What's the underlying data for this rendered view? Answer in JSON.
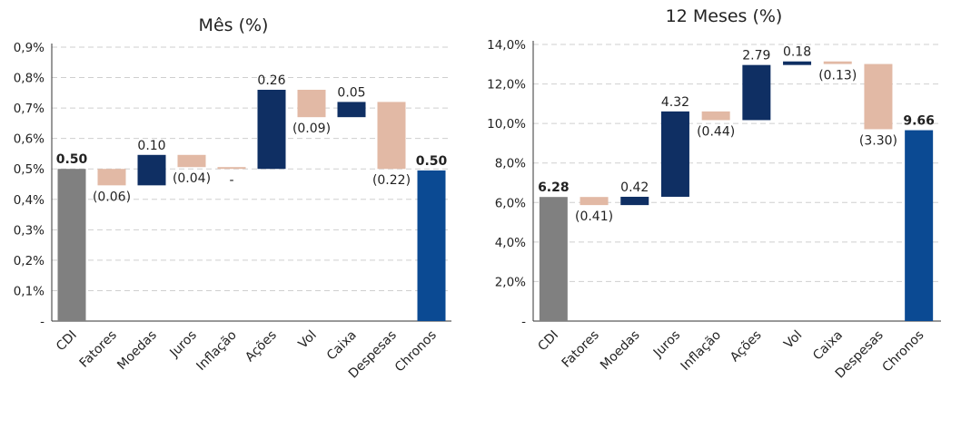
{
  "colors": {
    "cdi": "#808080",
    "positive": "#0f2f63",
    "negative": "#e2b9a5",
    "total": "#0b4a93"
  },
  "chart_data": [
    {
      "type": "bar",
      "variant": "waterfall",
      "title": "Mês (%)",
      "ylim": [
        0,
        0.9
      ],
      "yticks": [
        {
          "v": 0,
          "label": "-"
        },
        {
          "v": 0.1,
          "label": "0,1%"
        },
        {
          "v": 0.2,
          "label": "0,2%"
        },
        {
          "v": 0.3,
          "label": "0,3%"
        },
        {
          "v": 0.4,
          "label": "0,4%"
        },
        {
          "v": 0.5,
          "label": "0,5%"
        },
        {
          "v": 0.6,
          "label": "0,6%"
        },
        {
          "v": 0.7,
          "label": "0,7%"
        },
        {
          "v": 0.8,
          "label": "0,8%"
        },
        {
          "v": 0.9,
          "label": "0,9%"
        }
      ],
      "grid": true,
      "categories": [
        "CDI",
        "Fatores",
        "Moedas",
        "Juros",
        "Inflação",
        "Ações",
        "Vol",
        "Caixa",
        "Despesas",
        "Chronos"
      ],
      "bars": [
        {
          "kind": "total-cdi",
          "base": 0,
          "top": 0.5,
          "label": "0.50",
          "bold": true
        },
        {
          "kind": "negative",
          "base": 0.5,
          "top": 0.446,
          "label": "(0.06)",
          "bold": false
        },
        {
          "kind": "positive",
          "base": 0.446,
          "top": 0.546,
          "label": "0.10",
          "bold": false
        },
        {
          "kind": "negative",
          "base": 0.546,
          "top": 0.506,
          "label": "(0.04)",
          "bold": false
        },
        {
          "kind": "negative",
          "base": 0.506,
          "top": 0.5,
          "label": "-",
          "bold": false
        },
        {
          "kind": "positive",
          "base": 0.5,
          "top": 0.76,
          "label": "0.26",
          "bold": false
        },
        {
          "kind": "negative",
          "base": 0.76,
          "top": 0.67,
          "label": "(0.09)",
          "bold": false
        },
        {
          "kind": "positive",
          "base": 0.67,
          "top": 0.72,
          "label": "0.05",
          "bold": false
        },
        {
          "kind": "negative",
          "base": 0.72,
          "top": 0.5,
          "label": "(0.22)",
          "bold": false
        },
        {
          "kind": "total",
          "base": 0,
          "top": 0.495,
          "label": "0.50",
          "bold": true
        }
      ]
    },
    {
      "type": "bar",
      "variant": "waterfall",
      "title": "12 Meses (%)",
      "ylim": [
        0,
        14
      ],
      "yticks": [
        {
          "v": 0,
          "label": "-"
        },
        {
          "v": 2,
          "label": "2,0%"
        },
        {
          "v": 4,
          "label": "4,0%"
        },
        {
          "v": 6,
          "label": "6,0%"
        },
        {
          "v": 8,
          "label": "8,0%"
        },
        {
          "v": 10,
          "label": "10,0%"
        },
        {
          "v": 12,
          "label": "12,0%"
        },
        {
          "v": 14,
          "label": "14,0%"
        }
      ],
      "grid": true,
      "categories": [
        "CDI",
        "Fatores",
        "Moedas",
        "Juros",
        "Inflação",
        "Ações",
        "Vol",
        "Caixa",
        "Despesas",
        "Chronos"
      ],
      "bars": [
        {
          "kind": "total-cdi",
          "base": 0,
          "top": 6.28,
          "label": "6.28",
          "bold": true
        },
        {
          "kind": "negative",
          "base": 6.28,
          "top": 5.87,
          "label": "(0.41)",
          "bold": false
        },
        {
          "kind": "positive",
          "base": 5.87,
          "top": 6.29,
          "label": "0.42",
          "bold": false
        },
        {
          "kind": "positive",
          "base": 6.29,
          "top": 10.61,
          "label": "4.32",
          "bold": false
        },
        {
          "kind": "negative",
          "base": 10.61,
          "top": 10.17,
          "label": "(0.44)",
          "bold": false
        },
        {
          "kind": "positive",
          "base": 10.17,
          "top": 12.96,
          "label": "2.79",
          "bold": false
        },
        {
          "kind": "positive",
          "base": 12.96,
          "top": 13.14,
          "label": "0.18",
          "bold": false
        },
        {
          "kind": "negative",
          "base": 13.14,
          "top": 13.01,
          "label": "(0.13)",
          "bold": false
        },
        {
          "kind": "negative",
          "base": 13.01,
          "top": 9.71,
          "label": "(3.30)",
          "bold": false
        },
        {
          "kind": "total",
          "base": 0,
          "top": 9.66,
          "label": "9.66",
          "bold": true
        }
      ]
    }
  ]
}
